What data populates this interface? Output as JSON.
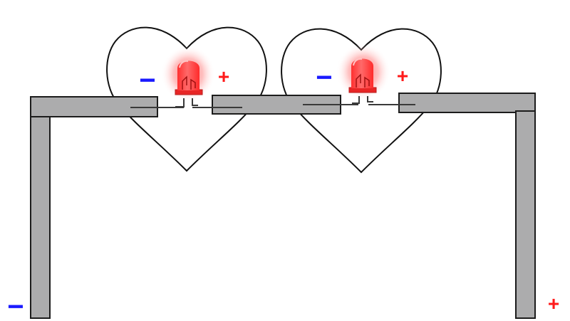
{
  "diagram": {
    "labels": {
      "left_led_minus": "−",
      "left_led_plus": "+",
      "right_led_minus": "−",
      "right_led_plus": "+",
      "battery_minus": "−",
      "battery_plus": "+"
    },
    "colors": {
      "copper_tape": "#acacad",
      "outline": "#1c1c1c",
      "heart_outline": "#111111",
      "led_red": "#ff3b3b",
      "led_glow": "#ff6a6a",
      "minus_blue": "#1a1aff",
      "plus_red": "#ff1a1a"
    },
    "icons": {
      "led": "led-icon",
      "heart": "heart-icon"
    }
  }
}
